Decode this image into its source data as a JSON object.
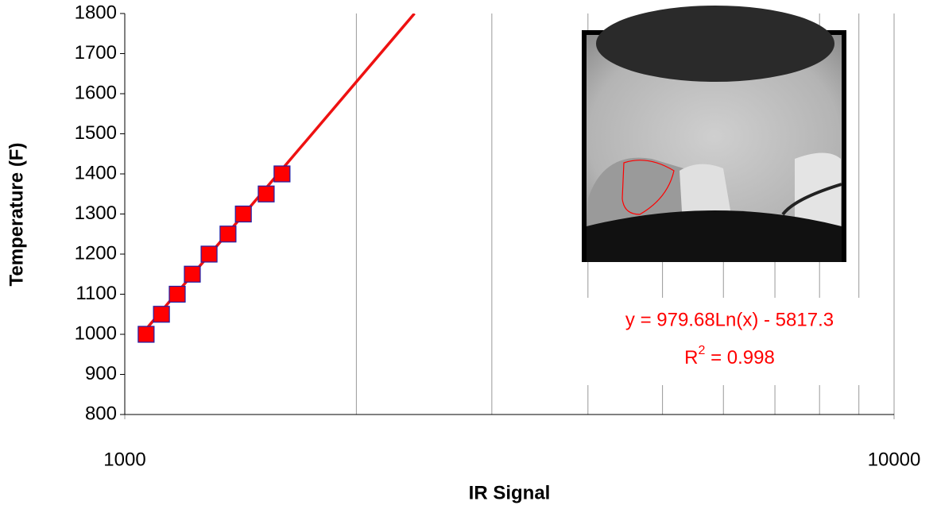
{
  "chart_data": {
    "type": "scatter",
    "x_label": "IR Signal",
    "y_label": "Temperature (F)",
    "log_x": true,
    "xlim": [
      1000,
      10000
    ],
    "xticks": [
      1000,
      10000
    ],
    "xgrid": [
      2000,
      3000,
      4000,
      5000,
      6000,
      7000,
      8000,
      9000
    ],
    "ylim": [
      800,
      1800
    ],
    "yticks": [
      800,
      900,
      1000,
      1100,
      1200,
      1300,
      1400,
      1500,
      1600,
      1700,
      1800
    ],
    "series": [
      {
        "color": "#ff0000",
        "edge_color": "#1f1fa8",
        "x": [
          1066,
          1116,
          1170,
          1224,
          1287,
          1362,
          1426,
          1527,
          1601
        ],
        "values": [
          1000,
          1050,
          1100,
          1150,
          1200,
          1250,
          1300,
          1350,
          1400
        ]
      }
    ],
    "trendline": {
      "color": "#ee1111",
      "x": [
        1066,
        2380
      ],
      "values": [
        1013,
        1800
      ]
    },
    "equation": "y = 979.68Ln(x) - 5817.3",
    "r2": {
      "base": "R",
      "sup": "2",
      "text": " = 0.998"
    }
  }
}
